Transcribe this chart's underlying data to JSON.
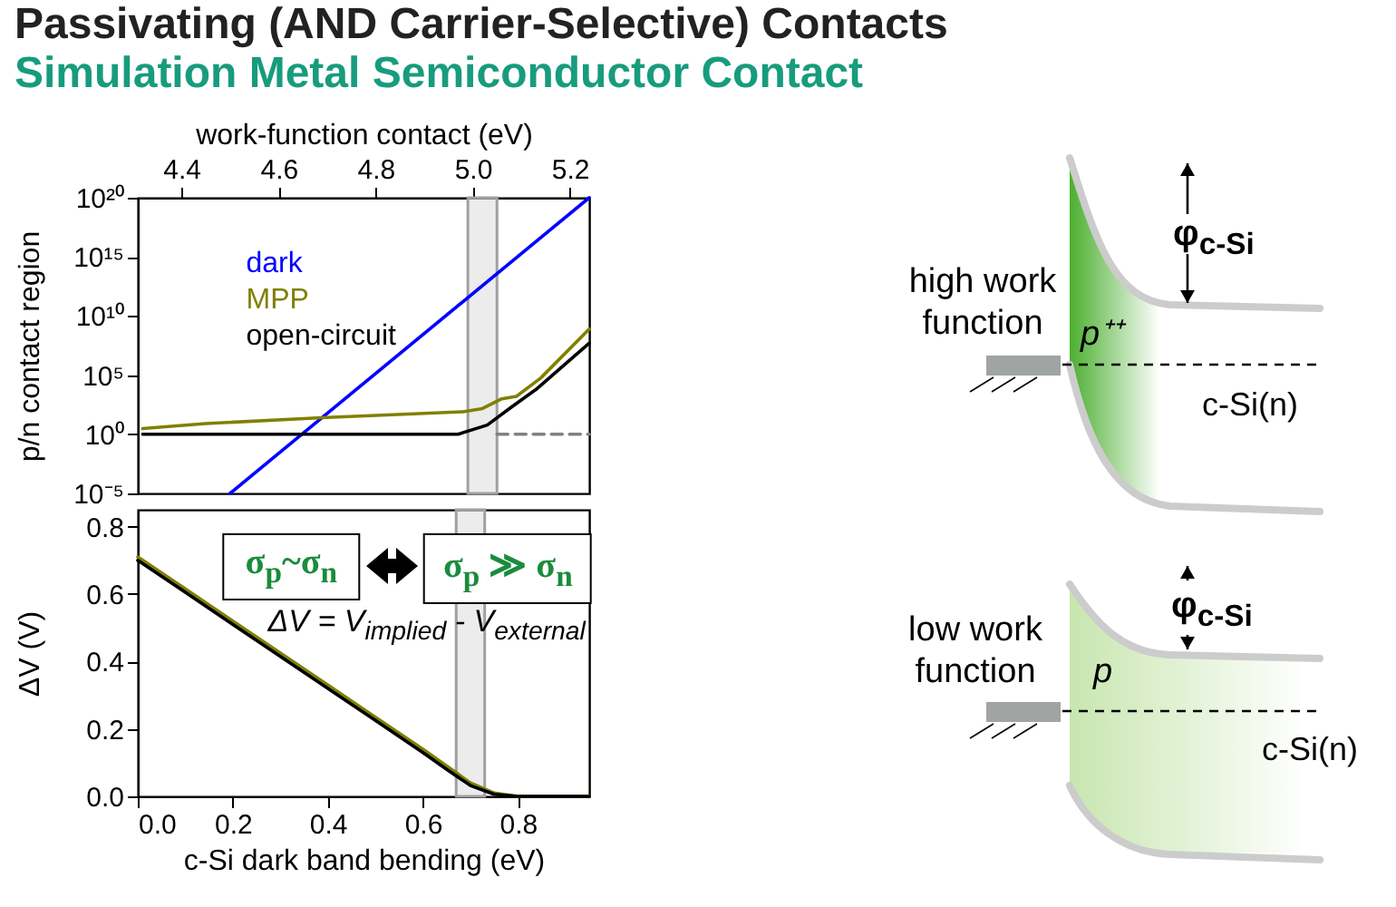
{
  "chart_data": [
    {
      "type": "line",
      "title": "Passivating (AND Carrier-Selective) Contacts",
      "subtitle": "Simulation Metal Semiconductor Contact",
      "xlabel": "work-function contact  (eV)",
      "ylabel": "p/n contact region",
      "xlim": [
        4.31,
        5.24
      ],
      "xticks": [
        4.4,
        4.6,
        4.8,
        {
          "value": 5,
          "label": "5.0"
        },
        5.2
      ],
      "log": true,
      "ylim": [
        1e-05,
        1e+20
      ],
      "yticks": [
        {
          "value": 1e-05,
          "label": "10⁻⁵"
        },
        {
          "value": 1,
          "label": "10⁰"
        },
        {
          "value": 100000.0,
          "label": "10⁵"
        },
        {
          "value": 10000000000.0,
          "label": "10¹⁰"
        },
        {
          "value": 1000000000000000.0,
          "label": "10¹⁵"
        },
        {
          "value": 1e+20,
          "label": "10²⁰"
        }
      ],
      "series": [
        {
          "name": "dark",
          "color": "#0000ff",
          "x": [
            4.5,
            5.24
          ],
          "values": [
            1e-05,
            1e+20
          ]
        },
        {
          "name": "MPP",
          "color": "#808000",
          "x": [
            4.32,
            4.45,
            4.69,
            4.98,
            5.02,
            5.06,
            5.09,
            5.14,
            5.24
          ],
          "values": [
            3,
            8,
            25,
            80,
            150,
            1000,
            1600,
            56000,
            800000000
          ]
        },
        {
          "name": "open-circuit",
          "color": "#000000",
          "x": [
            4.32,
            4.97,
            5.03,
            5.08,
            5.13,
            5.24
          ],
          "values": [
            1,
            1,
            6,
            200,
            6000,
            50000000
          ]
        },
        {
          "color": "#808080",
          "line_style": "dashed",
          "x": [
            5.05,
            5.24
          ],
          "values": [
            1,
            1
          ]
        }
      ],
      "bands": [
        {
          "axis": "x",
          "from": 4.99,
          "to": 5.05,
          "color": "#d9d9d9"
        }
      ]
    },
    {
      "type": "line",
      "xlabel": "c-Si dark band bending (eV)",
      "ylabel": "ΔV (V)",
      "xlim": [
        0,
        0.95
      ],
      "xticks": [
        {
          "value": 0,
          "label": "0.0"
        },
        0.2,
        0.4,
        0.6,
        0.8
      ],
      "ylim": [
        0,
        0.85
      ],
      "yticks": [
        {
          "value": 0,
          "label": "0.0"
        },
        0.2,
        0.4,
        0.6,
        0.8
      ],
      "x": [
        0,
        0.1,
        0.2,
        0.3,
        0.4,
        0.5,
        0.6,
        0.65,
        0.7,
        0.75,
        0.8,
        0.95
      ],
      "series": [
        {
          "color": "#808000",
          "values": [
            0.71,
            0.615,
            0.52,
            0.425,
            0.33,
            0.235,
            0.14,
            0.09,
            0.04,
            0.01,
            0,
            0
          ]
        },
        {
          "color": "#000000",
          "values": [
            0.7,
            0.605,
            0.51,
            0.415,
            0.32,
            0.225,
            0.13,
            0.08,
            0.032,
            0.006,
            0,
            0
          ]
        }
      ],
      "bands": [
        {
          "axis": "x",
          "from": 0.67,
          "to": 0.73,
          "color": "#d9d9d9"
        }
      ],
      "annotations": [
        "ΔV = V$_{implied}$ -  V$_{external}$",
        "σ$_{p}$~σ$_{n}$",
        "σ$_{p}$ ≫ σ$_{n}$"
      ]
    },
    {
      "type": "other",
      "annotations": [
        "high work function",
        "p⁺⁺",
        "φ$_{c-Si}$",
        "c-Si(n)",
        "low work function",
        "p",
        "φ$_{c-Si}$",
        "c-Si(n)"
      ]
    }
  ]
}
